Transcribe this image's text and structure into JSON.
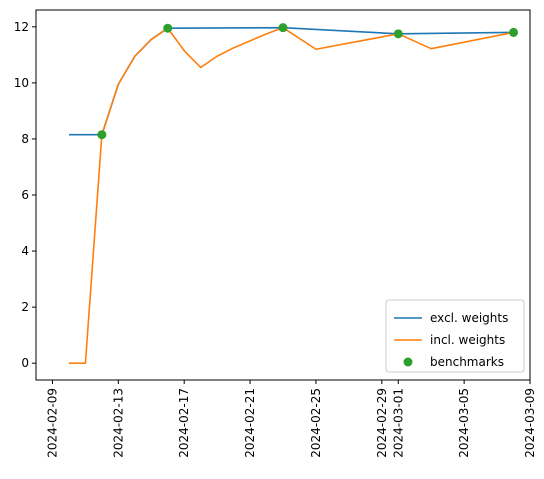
{
  "chart_data": {
    "type": "line",
    "title": "",
    "xlabel": "",
    "ylabel": "",
    "xlim": [
      "2024-02-08",
      "2024-03-09"
    ],
    "ylim": [
      -0.6,
      12.6
    ],
    "yticks": [
      0,
      2,
      4,
      6,
      8,
      10,
      12
    ],
    "xticks": [
      "2024-02-09",
      "2024-02-13",
      "2024-02-17",
      "2024-02-21",
      "2024-02-25",
      "2024-02-29",
      "2024-03-01",
      "2024-03-05",
      "2024-03-09"
    ],
    "grid": false,
    "legend": "lower-right",
    "series": [
      {
        "name": "excl. weights",
        "kind": "line",
        "color": "#1f77b4",
        "x": [
          "2024-02-10",
          "2024-02-12",
          "2024-02-13",
          "2024-02-14",
          "2024-02-15",
          "2024-02-16",
          "2024-02-23",
          "2024-03-01",
          "2024-03-08"
        ],
        "y": [
          8.15,
          8.15,
          9.95,
          10.95,
          11.55,
          11.95,
          11.97,
          11.75,
          11.8
        ]
      },
      {
        "name": "incl. weights",
        "kind": "line",
        "color": "#ff7f0e",
        "x": [
          "2024-02-10",
          "2024-02-11",
          "2024-02-12",
          "2024-02-13",
          "2024-02-14",
          "2024-02-15",
          "2024-02-16",
          "2024-02-17",
          "2024-02-18",
          "2024-02-19",
          "2024-02-20",
          "2024-02-21",
          "2024-02-22",
          "2024-02-23",
          "2024-02-25",
          "2024-03-01",
          "2024-03-03",
          "2024-03-08"
        ],
        "y": [
          0,
          0,
          8.15,
          9.95,
          10.95,
          11.55,
          11.95,
          11.15,
          10.55,
          10.95,
          11.25,
          11.5,
          11.75,
          11.97,
          11.2,
          11.75,
          11.22,
          11.8
        ]
      },
      {
        "name": "benchmarks",
        "kind": "scatter",
        "color": "#2ca02c",
        "x": [
          "2024-02-12",
          "2024-02-16",
          "2024-02-23",
          "2024-03-01",
          "2024-03-08"
        ],
        "y": [
          8.15,
          11.95,
          11.97,
          11.75,
          11.8
        ]
      }
    ]
  }
}
